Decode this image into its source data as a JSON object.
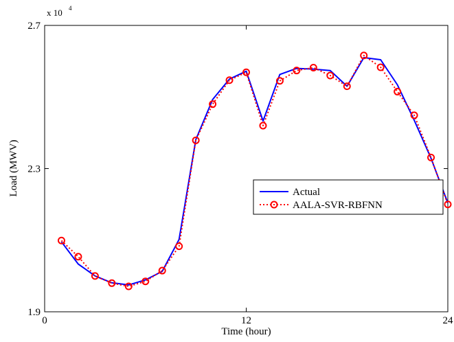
{
  "chart_data": {
    "type": "line",
    "xlabel": "Time (hour)",
    "ylabel": "Load (MWV)",
    "xlim": [
      0,
      24
    ],
    "ylim": [
      19000,
      27000
    ],
    "x_ticks": [
      0,
      12,
      24
    ],
    "x_tick_labels": [
      "0",
      "12",
      "24"
    ],
    "y_ticks": [
      19000,
      23000,
      27000
    ],
    "y_tick_labels": [
      "1.9",
      "2.3",
      "2.7"
    ],
    "y_exponent_label": {
      "base": "x 10",
      "exponent": "4"
    },
    "grid": false,
    "legend_position": "center-right",
    "series": [
      {
        "name": "Actual",
        "color": "#0000ff",
        "line_style": "solid",
        "marker": "none",
        "x": [
          1,
          2,
          3,
          4,
          5,
          6,
          7,
          8,
          9,
          10,
          11,
          12,
          13,
          14,
          15,
          16,
          17,
          18,
          19,
          20,
          21,
          22,
          23,
          24
        ],
        "y": [
          20953,
          20333,
          20002,
          19810,
          19750,
          19890,
          20130,
          21020,
          23810,
          24930,
          25500,
          25720,
          24330,
          25630,
          25800,
          25780,
          25740,
          25300,
          26100,
          26040,
          25340,
          24350,
          23290,
          22040
        ]
      },
      {
        "name": "AALA-SVR-RBFNN",
        "color": "#ff0000",
        "line_style": "dotted",
        "marker": "circle",
        "x": [
          1,
          2,
          3,
          4,
          5,
          6,
          7,
          8,
          9,
          10,
          11,
          12,
          13,
          14,
          15,
          16,
          17,
          18,
          19,
          20,
          21,
          22,
          23,
          24
        ],
        "y": [
          20990,
          20540,
          20000,
          19800,
          19710,
          19850,
          20150,
          20830,
          23790,
          24800,
          25470,
          25690,
          24200,
          25450,
          25740,
          25820,
          25600,
          25300,
          26160,
          25830,
          25150,
          24490,
          23310,
          22000
        ]
      }
    ]
  }
}
